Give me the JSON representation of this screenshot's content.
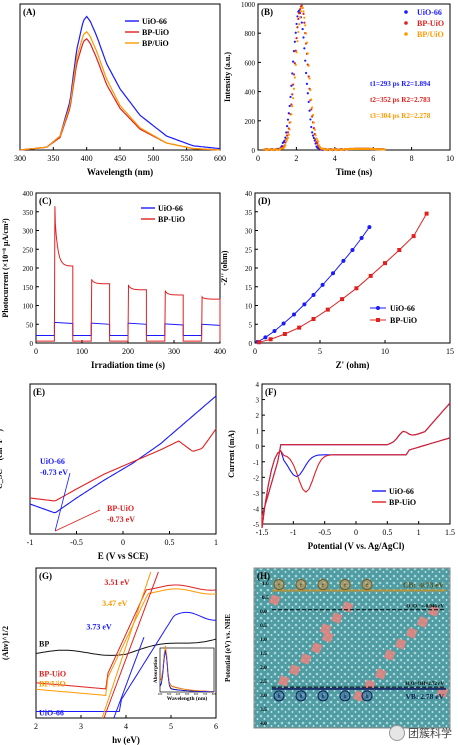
{
  "chart_data": [
    {
      "panel": "(A)",
      "type": "line",
      "xlabel": "Wavelength (nm)",
      "ylabel": "PL intensity (a.u.)",
      "xlim": [
        300,
        600
      ],
      "xticks": [
        300,
        350,
        400,
        450,
        500,
        550,
        600
      ],
      "series": [
        {
          "name": "UiO-66",
          "color": "#1a1aff",
          "x": [
            300,
            340,
            360,
            375,
            385,
            395,
            400,
            405,
            415,
            430,
            450,
            480,
            520,
            560,
            600
          ],
          "y": [
            0.0,
            0.02,
            0.1,
            0.35,
            0.72,
            0.93,
            0.96,
            0.93,
            0.82,
            0.62,
            0.44,
            0.25,
            0.1,
            0.03,
            0.01
          ]
        },
        {
          "name": "BP-UiO",
          "color": "#e02020",
          "x": [
            300,
            340,
            360,
            375,
            385,
            395,
            400,
            405,
            415,
            430,
            450,
            480,
            520,
            560,
            600
          ],
          "y": [
            0.0,
            0.02,
            0.09,
            0.3,
            0.62,
            0.78,
            0.8,
            0.77,
            0.66,
            0.47,
            0.3,
            0.15,
            0.05,
            0.01,
            0.0
          ]
        },
        {
          "name": "BP/UiO",
          "color": "#ff9900",
          "x": [
            300,
            340,
            360,
            375,
            385,
            395,
            400,
            405,
            415,
            430,
            450,
            480,
            520,
            560,
            600
          ],
          "y": [
            0.0,
            0.02,
            0.1,
            0.32,
            0.66,
            0.83,
            0.85,
            0.82,
            0.71,
            0.51,
            0.32,
            0.16,
            0.05,
            0.01,
            0.0
          ]
        }
      ]
    },
    {
      "panel": "(B)",
      "type": "scatter",
      "xlabel": "Time (ns)",
      "ylabel": "Intensity (a.u.)",
      "xlim": [
        0,
        10
      ],
      "ylim": [
        0,
        1000
      ],
      "xticks": [
        0,
        2,
        4,
        6,
        8,
        10
      ],
      "yticks": [
        0,
        200,
        400,
        600,
        800,
        1000
      ],
      "series": [
        {
          "name": "UiO-66",
          "color": "#1a1aff",
          "peak": 2.15,
          "height": 940
        },
        {
          "name": "BP-UiO",
          "color": "#e02020",
          "peak": 2.25,
          "height": 980
        },
        {
          "name": "BP/UiO",
          "color": "#ff9900",
          "peak": 2.3,
          "height": 960
        }
      ],
      "annotations": [
        {
          "text": "t1=293 ps  R2=1.894",
          "color": "#1a1aff"
        },
        {
          "text": "t2=352 ps  R2=2.783",
          "color": "#e02020"
        },
        {
          "text": "t3=304 ps  R2=2.278",
          "color": "#ff9900"
        }
      ]
    },
    {
      "panel": "(C)",
      "type": "line",
      "xlabel": "Irradiation time (s)",
      "ylabel": "Photocurrent (×10⁻⁸ μA/cm²)",
      "xlim": [
        0,
        400
      ],
      "ylim": [
        0,
        400
      ],
      "xticks": [
        0,
        100,
        200,
        300,
        400
      ],
      "yticks": [
        0,
        50,
        100,
        150,
        200,
        250,
        300,
        350,
        400
      ],
      "series": [
        {
          "name": "UiO-66",
          "color": "#1a1aff",
          "on": [
            [
              40,
              80
            ],
            [
              120,
              160
            ],
            [
              200,
              240
            ],
            [
              280,
              320
            ],
            [
              360,
              400
            ]
          ],
          "dark": 20,
          "light": [
            52,
            50,
            50,
            48,
            47
          ]
        },
        {
          "name": "BP-UiO",
          "color": "#e02020",
          "on": [
            [
              40,
              80
            ],
            [
              120,
              160
            ],
            [
              200,
              240
            ],
            [
              280,
              320
            ],
            [
              360,
              400
            ]
          ],
          "dark": 5,
          "peak": [
            365,
            170,
            155,
            140,
            123
          ],
          "plateau": [
            205,
            158,
            142,
            128,
            117
          ]
        }
      ]
    },
    {
      "panel": "(D)",
      "type": "line",
      "xlabel": "Z' (ohm)",
      "ylabel": "-Z'' (ohm)",
      "xlim": [
        0,
        15
      ],
      "ylim": [
        0,
        40
      ],
      "xticks": [
        0,
        5,
        10,
        15
      ],
      "yticks": [
        0,
        5,
        10,
        15,
        20,
        25,
        30,
        35,
        40
      ],
      "series": [
        {
          "name": "UiO-66",
          "color": "#1a1aff",
          "x": [
            0.2,
            0.8,
            1.5,
            2.2,
            3.0,
            3.8,
            4.5,
            5.2,
            6.0,
            6.8,
            7.5,
            8.2,
            8.8
          ],
          "y": [
            0.3,
            1.5,
            3.2,
            5.2,
            7.6,
            10.3,
            12.8,
            15.5,
            18.6,
            21.9,
            24.8,
            28.0,
            30.9
          ]
        },
        {
          "name": "BP-UiO",
          "color": "#e02020",
          "x": [
            0.3,
            1.2,
            2.3,
            3.4,
            4.5,
            5.6,
            6.7,
            7.8,
            8.9,
            10.0,
            11.1,
            12.2,
            13.2
          ],
          "y": [
            0.2,
            1.0,
            2.4,
            4.1,
            6.4,
            8.9,
            11.7,
            14.6,
            17.9,
            21.3,
            24.8,
            28.5,
            34.5
          ]
        }
      ]
    },
    {
      "panel": "(E)",
      "type": "line",
      "xlabel": "E (V vs SCE)",
      "ylabel": "C_SC⁻² (cm⁴ F⁻²)",
      "xlim": [
        -1.0,
        1.0
      ],
      "xticks": [
        -1.0,
        -0.5,
        0.0,
        0.5,
        1.0
      ],
      "series": [
        {
          "name": "UiO-66",
          "color": "#1a1aff",
          "x": [
            -1.0,
            -0.73,
            -0.5,
            -0.2,
            0.1,
            0.4,
            0.7,
            1.0
          ],
          "y": [
            0.2,
            0.14,
            0.24,
            0.36,
            0.47,
            0.6,
            0.76,
            0.92
          ]
        },
        {
          "name": "BP-UiO",
          "color": "#e02020",
          "x": [
            -1.0,
            -0.73,
            -0.5,
            -0.2,
            0.1,
            0.4,
            0.6,
            0.75,
            0.85,
            1.0
          ],
          "y": [
            0.24,
            0.22,
            0.3,
            0.4,
            0.48,
            0.56,
            0.62,
            0.55,
            0.57,
            0.7
          ]
        }
      ],
      "annotations": [
        {
          "text": "UiO-66",
          "color": "#1a1aff"
        },
        {
          "text": "-0.73 eV",
          "color": "#1a1aff"
        },
        {
          "text": "BP-UiO",
          "color": "#e02020"
        },
        {
          "text": "-0.73 eV",
          "color": "#e02020"
        }
      ]
    },
    {
      "panel": "(F)",
      "type": "line",
      "xlabel": "Potential (V vs. Ag/AgCl)",
      "ylabel": "Current (mA)",
      "xlim": [
        -1.5,
        1.5
      ],
      "ylim": [
        -5,
        4
      ],
      "xticks": [
        -1.5,
        -1.0,
        -0.5,
        0.0,
        0.5,
        1.0,
        1.5
      ],
      "yticks": [
        -5,
        -4,
        -3,
        -2,
        -1,
        0,
        1,
        2,
        3,
        4
      ],
      "series": [
        {
          "name": "UiO-66",
          "color": "#1a1aff"
        },
        {
          "name": "BP-UiO",
          "color": "#e02020"
        }
      ]
    },
    {
      "panel": "(G)",
      "type": "line",
      "xlabel": "hν (eV)",
      "ylabel": "(Ahν)^1/2",
      "xlim": [
        2,
        6
      ],
      "xticks": [
        2,
        3,
        4,
        5,
        6
      ],
      "series": [
        {
          "name": "BP",
          "color": "#111111"
        },
        {
          "name": "BP-UiO",
          "color": "#e02020"
        },
        {
          "name": "BP/UiO",
          "color": "#ff9900"
        },
        {
          "name": "UiO-66",
          "color": "#1a1aff"
        }
      ],
      "annotations": [
        {
          "text": "3.51 eV",
          "color": "#e02020"
        },
        {
          "text": "3.47 eV",
          "color": "#ff9900"
        },
        {
          "text": "3.73 eV",
          "color": "#1a1aff"
        }
      ],
      "inset": {
        "xlabel": "Wavelength (nm)",
        "ylabel": "Absorption",
        "xticks": [
          200,
          300,
          400,
          500,
          600,
          700,
          800
        ]
      }
    },
    {
      "panel": "(H)",
      "type": "diagram",
      "ylabel": "Potential (eV) vs. NHE",
      "yticks": [
        -1.0,
        -0.5,
        0.0,
        0.5,
        1.0,
        1.5,
        2.0,
        2.5,
        3.0,
        3.5,
        4.0
      ],
      "cb": "CB: -0.73 eV",
      "vb": "VB: 2.78 eV",
      "o2": "O₂/O₂⁻=-0.046 eV",
      "oh": "H₂O/·OH=2.72 eV",
      "electron_label": "e",
      "hole_label": "h"
    }
  ],
  "watermark": "团簇科学"
}
